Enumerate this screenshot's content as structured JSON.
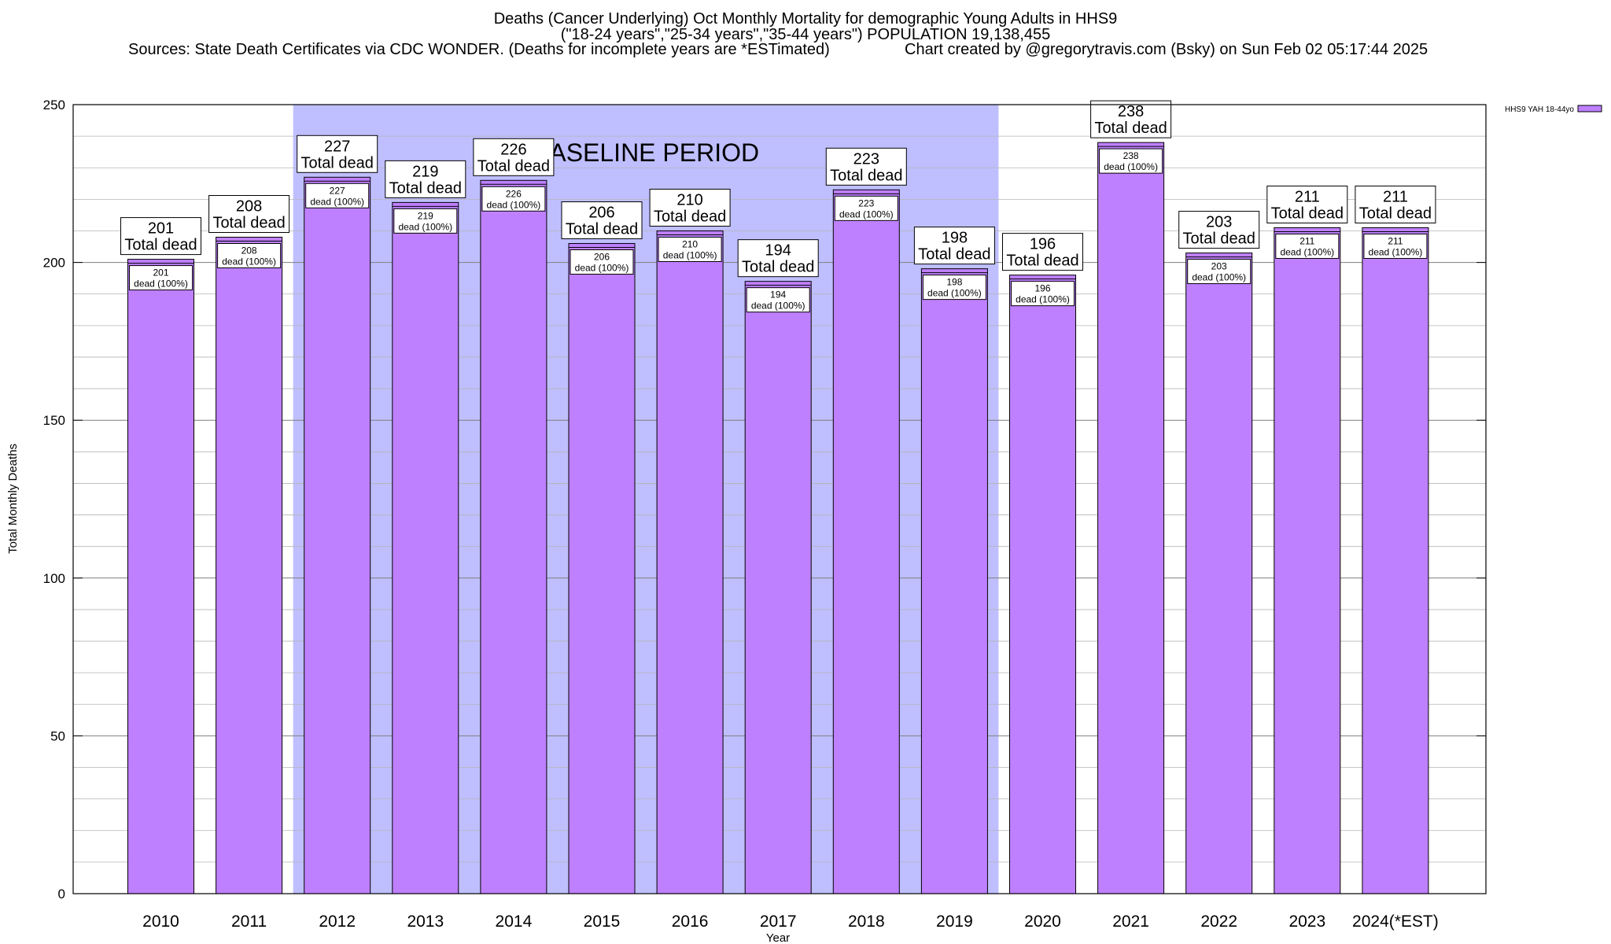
{
  "chart_data": {
    "type": "bar",
    "title": "Deaths (Cancer Underlying) Oct Monthly Mortality for demographic Young Adults in HHS9",
    "subtitle": "(\"18-24 years\",\"25-34 years\",\"35-44 years\") POPULATION 19,138,455",
    "sources": "Sources: State Death Certificates via CDC WONDER. (Deaths for incomplete years are *ESTimated)",
    "credit": "Chart created by @gregorytravis.com (Bsky) on Sun Feb 02 05:17:44 2025",
    "xlabel": "Year",
    "ylabel": "Total Monthly Deaths",
    "ylim": [
      0,
      250
    ],
    "yticks": [
      0,
      50,
      100,
      150,
      200,
      250
    ],
    "grid": true,
    "legend": {
      "position": "top-right",
      "entries": [
        "HHS9 YAH 18-44yo"
      ]
    },
    "series": [
      {
        "name": "HHS9 YAH 18-44yo",
        "color": "#bf80ff",
        "values": [
          201,
          208,
          227,
          219,
          226,
          206,
          210,
          194,
          223,
          198,
          196,
          238,
          203,
          211,
          211
        ]
      }
    ],
    "categories": [
      "2010",
      "2011",
      "2012",
      "2013",
      "2014",
      "2015",
      "2016",
      "2017",
      "2018",
      "2019",
      "2020",
      "2021",
      "2022",
      "2023",
      "2024(*EST)"
    ],
    "baseline": {
      "label": "BASELINE PERIOD",
      "from": "2012",
      "to": "2019",
      "color": "#bfbfff"
    },
    "bar_label_total_text": "Total dead",
    "bar_label_inner_text": "dead (100%)"
  }
}
